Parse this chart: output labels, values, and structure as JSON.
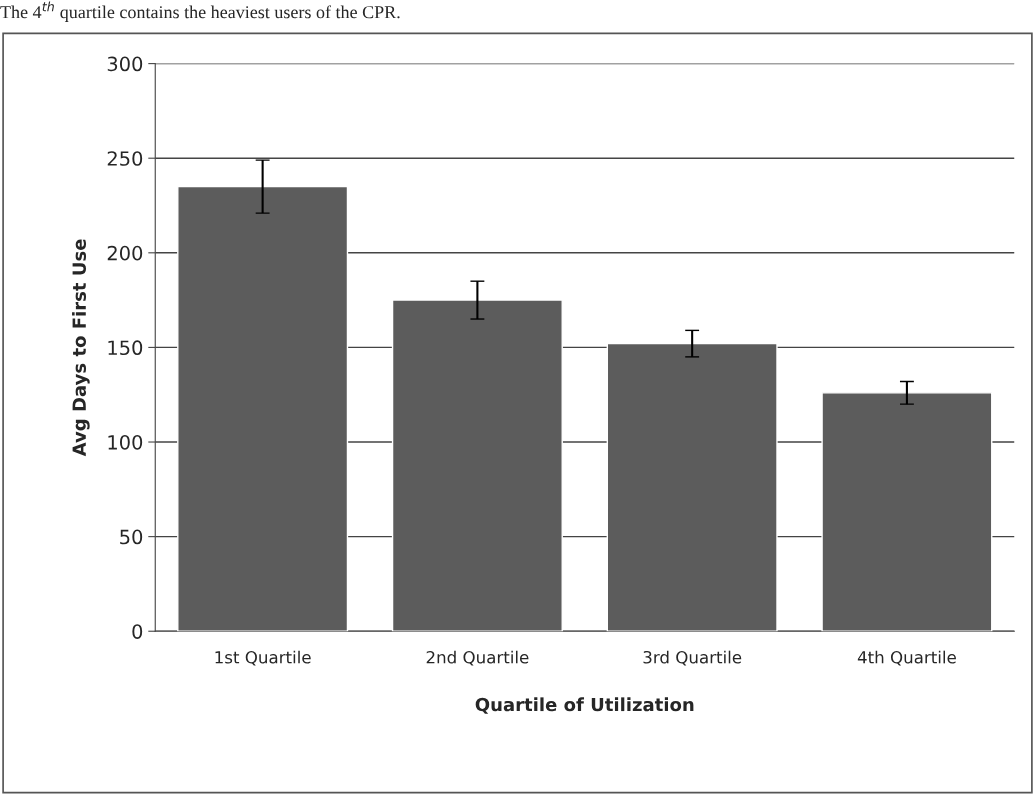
{
  "chart_data": {
    "type": "bar",
    "xlabel": "Quartile of Utilization",
    "ylabel": "Avg Days to First Use",
    "annotations": [
      "The 4$^{th}$ quartile contains the heaviest users of the CPR."
    ],
    "categories": [
      "1st Quartile",
      "2nd Quartile",
      "3rd Quartile",
      "4th Quartile"
    ],
    "values": [
      235,
      175,
      152,
      126
    ],
    "errors": [
      14,
      10,
      7,
      6
    ],
    "color": "#5c5c5c",
    "ylim": [
      0,
      300
    ],
    "yticks": [
      0,
      50,
      100,
      150,
      200,
      250,
      300
    ],
    "grid": "y",
    "legend": false
  }
}
